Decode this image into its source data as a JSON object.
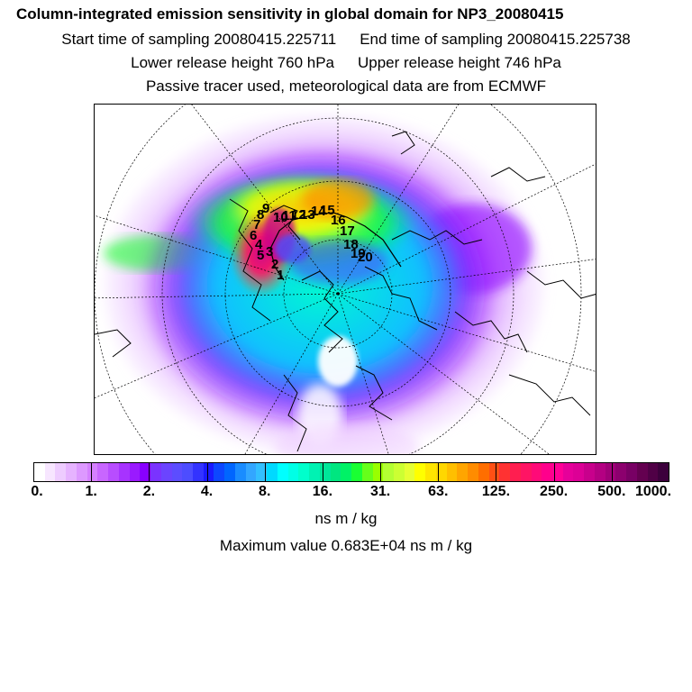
{
  "header": {
    "title": "Column-integrated emission sensitivity in global domain for NP3_20080415",
    "start_time": "Start time of sampling 20080415.225711",
    "end_time": "End time of sampling 20080415.225738",
    "lower_height": "Lower release height  760 hPa",
    "upper_height": "Upper release height  746 hPa",
    "tracer_note": "Passive tracer used, meteorological data are from ECMWF"
  },
  "map": {
    "projection": "polar stereographic, north pole",
    "trajectory_labels": [
      "1",
      "2",
      "3",
      "4",
      "5",
      "6",
      "7",
      "8",
      "9",
      "10",
      "11",
      "12",
      "13",
      "14",
      "15",
      "16",
      "17",
      "18",
      "19",
      "20"
    ]
  },
  "colorbar": {
    "colors": [
      "#ffffff",
      "#f7e6ff",
      "#eeccff",
      "#e6b3ff",
      "#dd99ff",
      "#d580ff",
      "#c866ff",
      "#b84dff",
      "#a733ff",
      "#9a1aff",
      "#8800ff",
      "#7a33ff",
      "#6b44ff",
      "#5c4dff",
      "#4d4dff",
      "#3333ff",
      "#1a1aff",
      "#0d47ff",
      "#0066ff",
      "#1a8cff",
      "#33a6ff",
      "#33bfff",
      "#00d9ff",
      "#00ffff",
      "#00ffe6",
      "#00ffcc",
      "#00f2b3",
      "#00e699",
      "#00e680",
      "#00f266",
      "#1aff33",
      "#66ff1a",
      "#99ff00",
      "#b3ff33",
      "#ccff33",
      "#e6ff33",
      "#ffff00",
      "#ffe600",
      "#ffd700",
      "#ffbf00",
      "#ffa500",
      "#ff8c00",
      "#ff6e00",
      "#ff5014",
      "#ff3232",
      "#ff1e50",
      "#ff1464",
      "#ff0a78",
      "#ff008c",
      "#ff0096",
      "#e6009a",
      "#dc0096",
      "#c8008c",
      "#b40082",
      "#a00078",
      "#8c006e",
      "#780064",
      "#640050",
      "#500046",
      "#3c003c"
    ],
    "tick_labels": [
      "0.",
      "1.",
      "2.",
      "4.",
      "8.",
      "16.",
      "31.",
      "63.",
      "125.",
      "250.",
      "500.",
      "1000."
    ],
    "units": "ns m / kg",
    "max_value": "Maximum value  0.683E+04 ns m / kg"
  }
}
